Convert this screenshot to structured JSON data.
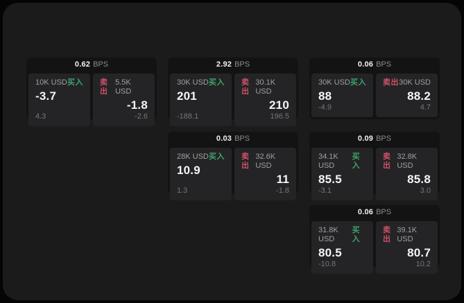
{
  "colors": {
    "buy_green": "#3da368",
    "sell_red": "#cf5068",
    "window_bg": "#1b1b1b",
    "card_bg": "#131313",
    "panel_bg": "#242426"
  },
  "labels": {
    "bps_unit": "BPS",
    "buy": "买入",
    "sell": "卖出"
  },
  "cards": [
    {
      "bps": "0.62",
      "buy": {
        "notional": "10K USD",
        "price": "-3.7",
        "delta": "4.3"
      },
      "sell": {
        "notional": "5.5K USD",
        "price": "-1.8",
        "delta": "-2.6"
      }
    },
    {
      "bps": "2.92",
      "buy": {
        "notional": "30K USD",
        "price": "201",
        "delta": "-188.1"
      },
      "sell": {
        "notional": "30.1K USD",
        "price": "210",
        "delta": "196.5"
      }
    },
    {
      "bps": "0.06",
      "buy": {
        "notional": "30K USD",
        "price": "88",
        "delta": "-4.9"
      },
      "sell": {
        "notional": "30K USD",
        "price": "88.2",
        "delta": "4.7"
      }
    },
    {
      "bps": "0.03",
      "buy": {
        "notional": "28K USD",
        "price": "10.9",
        "delta": "1.3"
      },
      "sell": {
        "notional": "32.6K USD",
        "price": "11",
        "delta": "-1.8"
      }
    },
    {
      "bps": "0.09",
      "buy": {
        "notional": "34.1K USD",
        "price": "85.5",
        "delta": "-3.1"
      },
      "sell": {
        "notional": "32.8K USD",
        "price": "85.8",
        "delta": "3.0"
      }
    },
    {
      "bps": "0.06",
      "buy": {
        "notional": "31.8K USD",
        "price": "80.5",
        "delta": "-10.8"
      },
      "sell": {
        "notional": "39.1K USD",
        "price": "80.7",
        "delta": "10.2"
      }
    }
  ]
}
